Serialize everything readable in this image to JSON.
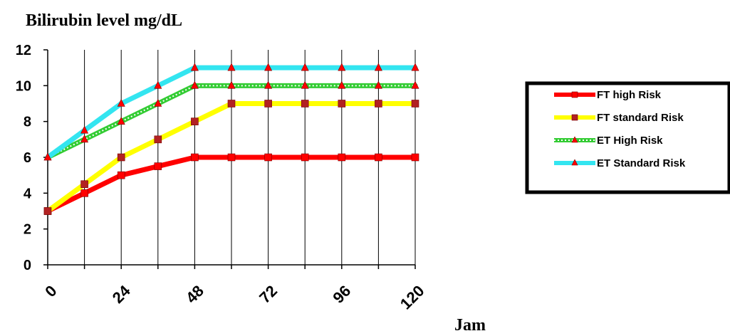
{
  "chart_data": {
    "type": "line",
    "title": "Bilirubin level mg/dL",
    "xlabel": "Jam",
    "ylabel": "",
    "x": [
      0,
      12,
      24,
      36,
      48,
      60,
      72,
      84,
      96,
      108,
      120
    ],
    "x_tick_labels": [
      "0",
      "24",
      "48",
      "72",
      "96",
      "120"
    ],
    "x_tick_values": [
      0,
      24,
      48,
      72,
      96,
      120
    ],
    "y_tick_labels": [
      "0",
      "2",
      "4",
      "6",
      "8",
      "10",
      "12"
    ],
    "ylim": [
      0,
      12
    ],
    "xlim": [
      0,
      120
    ],
    "grid": "vertical",
    "legend_position": "right",
    "series": [
      {
        "name": "FT high Risk",
        "color": "#ff0000",
        "marker": "square",
        "marker_color": "#ff0000",
        "values": [
          3,
          4,
          5,
          5.5,
          6,
          6,
          6,
          6,
          6,
          6,
          6
        ]
      },
      {
        "name": "FT standard Risk",
        "color": "#ffff00",
        "marker": "square",
        "marker_color": "#b22222",
        "values": [
          3,
          4.5,
          6,
          7,
          8,
          9,
          9,
          9,
          9,
          9,
          9
        ]
      },
      {
        "name": "ET High Risk",
        "color": "#33cc33",
        "marker": "triangle",
        "marker_color": "#ff0000",
        "values": [
          6,
          7,
          8,
          9,
          10,
          10,
          10,
          10,
          10,
          10,
          10
        ]
      },
      {
        "name": "ET Standard Risk",
        "color": "#33e5f0",
        "marker": "triangle",
        "marker_color": "#ff0000",
        "values": [
          6,
          7.5,
          9,
          10,
          11,
          11,
          11,
          11,
          11,
          11,
          11
        ]
      }
    ]
  }
}
